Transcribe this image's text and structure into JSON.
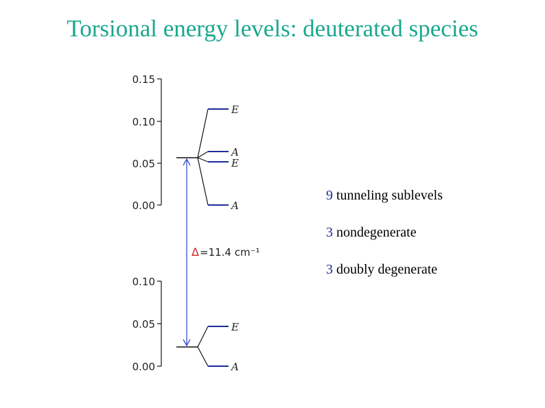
{
  "title": "Torsional energy levels: deuterated species",
  "diagram": {
    "upper_axis_ticks": [
      "0.15",
      "0.10",
      "0.05",
      "0.00"
    ],
    "lower_axis_ticks": [
      "0.10",
      "0.05",
      "0.00"
    ],
    "upper_levels": [
      "E",
      "A",
      "E",
      "A"
    ],
    "lower_levels": [
      "E",
      "A"
    ],
    "delta_symbol": "Δ",
    "delta_value": "=11.4 cm⁻¹",
    "colors": {
      "level": "#1e2a9a",
      "arrow": "#3b4fd6",
      "delta": "#cc2222",
      "title": "#1aa88e"
    }
  },
  "notes": [
    {
      "num": "9",
      "text": " tunneling sublevels"
    },
    {
      "num": "3",
      "text": " nondegenerate"
    },
    {
      "num": "3",
      "text": " doubly degenerate"
    }
  ]
}
